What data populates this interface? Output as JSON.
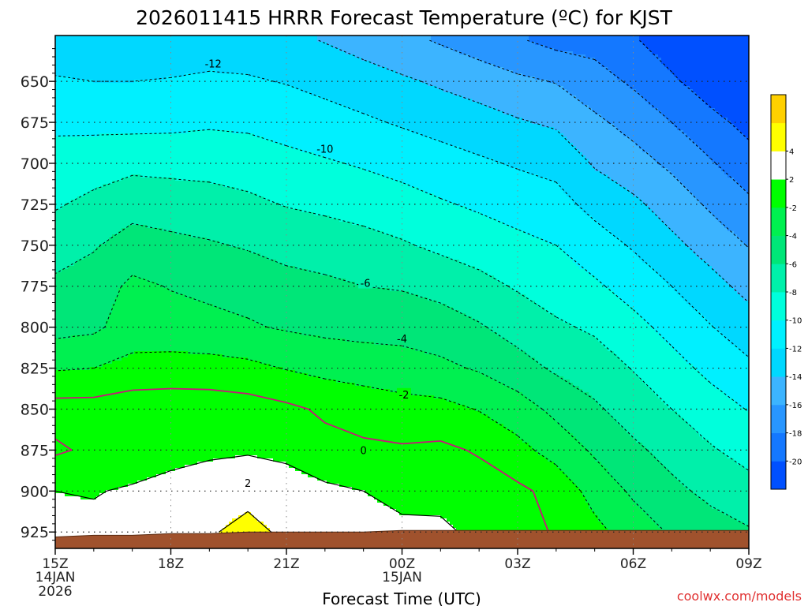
{
  "title": "2026011415 HRRR Forecast Temperature (ºC) for KJST",
  "footer": {
    "credit": "coolwx.com/models"
  },
  "colors": {
    "terrain": "#a0522d",
    "freezing_line": "#c8157a",
    "plus4_level": "#ffd000",
    "plus2_level": "#ffff00"
  },
  "chart_data": {
    "type": "heatmap",
    "title": "2026011415 HRRR Forecast Temperature (ºC) for KJST",
    "xlabel": "Forecast Time (UTC)",
    "ylabel": "",
    "x_ticks": [
      {
        "label": "15Z",
        "sub1": "14JAN",
        "sub2": "2026",
        "hours": 15
      },
      {
        "label": "18Z",
        "sub1": "",
        "sub2": "",
        "hours": 18
      },
      {
        "label": "21Z",
        "sub1": "",
        "sub2": "",
        "hours": 21
      },
      {
        "label": "00Z",
        "sub1": "15JAN",
        "sub2": "",
        "hours": 24
      },
      {
        "label": "03Z",
        "sub1": "",
        "sub2": "",
        "hours": 27
      },
      {
        "label": "06Z",
        "sub1": "",
        "sub2": "",
        "hours": 30
      },
      {
        "label": "09Z",
        "sub1": "",
        "sub2": "",
        "hours": 33
      }
    ],
    "xlim_hours": [
      15,
      33
    ],
    "y_ticks": [
      650,
      675,
      700,
      725,
      750,
      775,
      800,
      825,
      850,
      875,
      900,
      925
    ],
    "ylim_hpa": [
      622,
      935
    ],
    "y_axis_inverted": true,
    "colorbar": {
      "levels": [
        -22,
        -20,
        -18,
        -16,
        -14,
        -12,
        -10,
        -8,
        -6,
        -4,
        -2,
        2,
        4,
        6
      ],
      "labels": [
        -20,
        -18,
        -16,
        -14,
        -12,
        -10,
        -8,
        -6,
        -4,
        -2,
        2,
        4
      ],
      "colors": [
        "#0050ff",
        "#1478ff",
        "#2896ff",
        "#3cb4ff",
        "#00d8ff",
        "#00f0ff",
        "#00ffdc",
        "#00f0aa",
        "#00e678",
        "#00f050",
        "#00ff00",
        "#ffffff",
        "#ffff00",
        "#ffd000"
      ]
    },
    "contour_labels": [
      {
        "text": "-12",
        "hours": 19.1,
        "hpa": 639
      },
      {
        "text": "-10",
        "hours": 22.0,
        "hpa": 691
      },
      {
        "text": "-6",
        "hours": 23.05,
        "hpa": 773
      },
      {
        "text": "-4",
        "hours": 24.0,
        "hpa": 807
      },
      {
        "text": "-2",
        "hours": 24.05,
        "hpa": 841
      },
      {
        "text": "0",
        "hours": 23.0,
        "hpa": 875
      },
      {
        "text": "2",
        "hours": 20.0,
        "hpa": 895
      }
    ],
    "temperature_fields": {
      "times_hours": [
        15,
        16,
        17,
        18,
        19,
        20,
        21,
        22,
        23,
        24,
        25,
        26,
        27,
        28,
        29,
        30,
        31,
        32,
        33
      ],
      "pressure_levels_hpa": [
        625,
        650,
        675,
        700,
        725,
        750,
        775,
        800,
        825,
        850,
        875,
        900,
        925
      ],
      "temps_c": [
        [
          -13.2,
          -13.8,
          -13.4,
          -13.0,
          -12.9,
          -13.0,
          -13.5,
          -14.1,
          -14.8,
          -15.5,
          -16.2,
          -17.0,
          -17.8,
          -18.6,
          -18.7,
          -19.8,
          -21.0,
          -22.1,
          -22.8
        ],
        [
          -11.8,
          -12.0,
          -12.0,
          -11.9,
          -11.7,
          -11.8,
          -12.1,
          -12.6,
          -13.1,
          -13.7,
          -14.3,
          -14.9,
          -15.6,
          -16.1,
          -17.2,
          -18.3,
          -19.7,
          -21.0,
          -21.8
        ],
        [
          -10.4,
          -10.5,
          -10.6,
          -10.5,
          -10.3,
          -10.4,
          -10.8,
          -11.2,
          -11.7,
          -12.2,
          -12.7,
          -13.2,
          -13.8,
          -14.3,
          -15.6,
          -16.7,
          -18.0,
          -19.4,
          -20.6
        ],
        [
          -9.2,
          -8.9,
          -8.5,
          -8.6,
          -8.6,
          -8.9,
          -9.4,
          -9.8,
          -10.2,
          -10.7,
          -11.2,
          -11.7,
          -12.2,
          -12.6,
          -14.2,
          -15.2,
          -16.4,
          -17.8,
          -19.2
        ],
        [
          -8.2,
          -7.5,
          -6.8,
          -7.0,
          -7.3,
          -7.6,
          -8.1,
          -8.4,
          -8.8,
          -9.2,
          -9.8,
          -10.3,
          -10.8,
          -11.3,
          -12.6,
          -13.6,
          -14.9,
          -16.3,
          -17.6
        ],
        [
          -6.9,
          -6.2,
          -5.1,
          -5.5,
          -5.8,
          -6.2,
          -6.7,
          -7.0,
          -7.3,
          -7.8,
          -8.4,
          -8.9,
          -9.5,
          -10.0,
          -11.1,
          -12.2,
          -13.5,
          -14.8,
          -16.1
        ],
        [
          -5.6,
          -5.0,
          -3.6,
          -4.1,
          -4.4,
          -4.7,
          -5.3,
          -5.6,
          -6.0,
          -6.2,
          -6.7,
          -7.4,
          -8.2,
          -8.9,
          -9.7,
          -10.8,
          -12.0,
          -13.3,
          -14.6
        ],
        [
          -4.7,
          -4.4,
          -3.0,
          -3.2,
          -3.5,
          -3.8,
          -4.2,
          -4.5,
          -4.6,
          -4.5,
          -5.0,
          -5.8,
          -6.8,
          -7.7,
          -8.3,
          -9.4,
          -10.6,
          -11.9,
          -13.1
        ],
        [
          -2.2,
          -2.0,
          -1.4,
          -1.2,
          -1.2,
          -1.5,
          -2.1,
          -2.6,
          -3.0,
          -3.4,
          -3.6,
          -4.2,
          -5.2,
          -6.3,
          -7.0,
          -8.1,
          -9.3,
          -10.5,
          -11.6
        ],
        [
          0.8,
          0.8,
          1.2,
          1.2,
          1.1,
          0.9,
          0.4,
          -0.3,
          -0.7,
          -1.1,
          -1.4,
          -2.1,
          -3.1,
          -4.5,
          -5.7,
          -6.9,
          -8.0,
          -9.1,
          -10.1
        ],
        [
          -0.3,
          0.4,
          1.0,
          1.4,
          1.6,
          1.8,
          1.6,
          0.6,
          0.3,
          0.2,
          0.4,
          -0.2,
          -1.4,
          -2.8,
          -4.3,
          -5.6,
          -6.7,
          -7.8,
          -8.7
        ],
        [
          2.0,
          1.9,
          2.2,
          2.6,
          3.2,
          3.4,
          2.8,
          2.4,
          2.0,
          1.6,
          1.2,
          0.9,
          0.4,
          -0.6,
          -2.8,
          -4.3,
          -5.5,
          -6.5,
          -7.3
        ],
        [
          2.2,
          2.4,
          2.9,
          3.4,
          3.8,
          4.6,
          3.6,
          3.0,
          2.6,
          2.3,
          2.5,
          1.4,
          0.8,
          -0.2,
          -1.4,
          -3.0,
          -4.2,
          -5.1,
          -5.8
        ]
      ]
    },
    "terrain_top_hpa": [
      928,
      927,
      927,
      926,
      926,
      925,
      925,
      925,
      925,
      924,
      924,
      924,
      924,
      924,
      924,
      924,
      924,
      924,
      924
    ]
  }
}
